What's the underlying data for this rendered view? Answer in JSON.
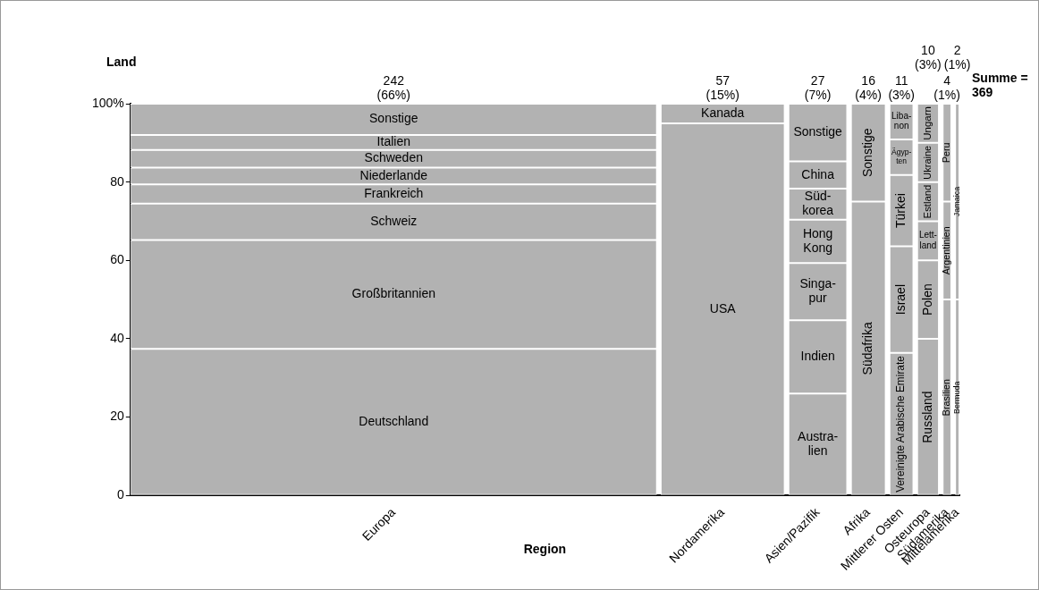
{
  "chart_data": {
    "type": "bar",
    "stacked": true,
    "xlabel": "Region",
    "ylabel": "Land",
    "categories": [
      "Europa",
      "Nordamerika",
      "Asien/Pazifik",
      "Afrika",
      "Mittlerer Osten",
      "Osteuropa",
      "Südamerika",
      "Mittelamerika"
    ],
    "series": [
      {
        "color": "#b2b2b2",
        "values": [
          37.4,
          95,
          26,
          75,
          36.4,
          40,
          50,
          50
        ],
        "value_labels": [
          "Deutschland",
          "USA",
          "Austra-\nlien",
          "Südafrika",
          "Vereinigte Arabische Emirate",
          "Russland",
          "Brasilien",
          "Bermuda"
        ]
      },
      {
        "color": "#b2b2b2",
        "values": [
          27.8,
          5,
          18.7,
          25,
          27.2,
          20,
          25,
          50
        ],
        "value_labels": [
          "Großbritannien",
          "Kanada",
          "Indien",
          "Sonstige",
          "Israel",
          "Polen",
          "Argentinien",
          "Jamaica"
        ]
      },
      {
        "color": "#b2b2b2",
        "values": [
          9.3,
          null,
          14.6,
          null,
          18.2,
          10,
          25,
          null
        ],
        "value_labels": [
          "Schweiz",
          null,
          "Singa-\npur",
          null,
          "Türkei",
          "Lett-\nland",
          "Peru",
          null
        ]
      },
      {
        "color": "#b2b2b2",
        "values": [
          4.9,
          null,
          11.1,
          null,
          9.1,
          10,
          null,
          null
        ],
        "value_labels": [
          "Frankreich",
          null,
          "Hong\nKong",
          null,
          "Ägyp-\nten",
          "Estland",
          null,
          null
        ]
      },
      {
        "color": "#b2b2b2",
        "values": [
          4.3,
          null,
          7.9,
          null,
          9.1,
          10,
          null,
          null
        ],
        "value_labels": [
          "Niederlande",
          null,
          "Süd-\nkorea",
          null,
          "Liba-\nnon",
          "Ukraine",
          null,
          null
        ]
      },
      {
        "color": "#b2b2b2",
        "values": [
          4.5,
          null,
          7.0,
          null,
          null,
          10,
          null,
          null
        ],
        "value_labels": [
          "Schweden",
          null,
          "China",
          null,
          null,
          "Ungarn",
          null,
          null
        ]
      },
      {
        "color": "#b2b2b2",
        "values": [
          3.8,
          null,
          14.7,
          null,
          null,
          null,
          null,
          null
        ],
        "value_labels": [
          "Italien",
          null,
          "Sonstige",
          null,
          null,
          null,
          null,
          null
        ]
      },
      {
        "color": "#b2b2b2",
        "values": [
          8.0,
          null,
          null,
          null,
          null,
          null,
          null,
          null
        ],
        "value_labels": [
          "Sonstige",
          null,
          null,
          null,
          null,
          null,
          null,
          null
        ]
      }
    ],
    "totals": [
      "242\n(66%)",
      "57\n(15%)",
      "27\n(7%)",
      "16\n(4%)",
      "11\n(3%)",
      "10\n(3%)",
      "4\n(1%)",
      "2\n(1%)"
    ],
    "ylim": [
      0,
      100
    ],
    "yticks": [
      0,
      20,
      40,
      60,
      80,
      {
        "value": 100,
        "label": "100%"
      }
    ],
    "grid": false,
    "legend": false,
    "annotations": [
      "Summe = 369"
    ]
  }
}
